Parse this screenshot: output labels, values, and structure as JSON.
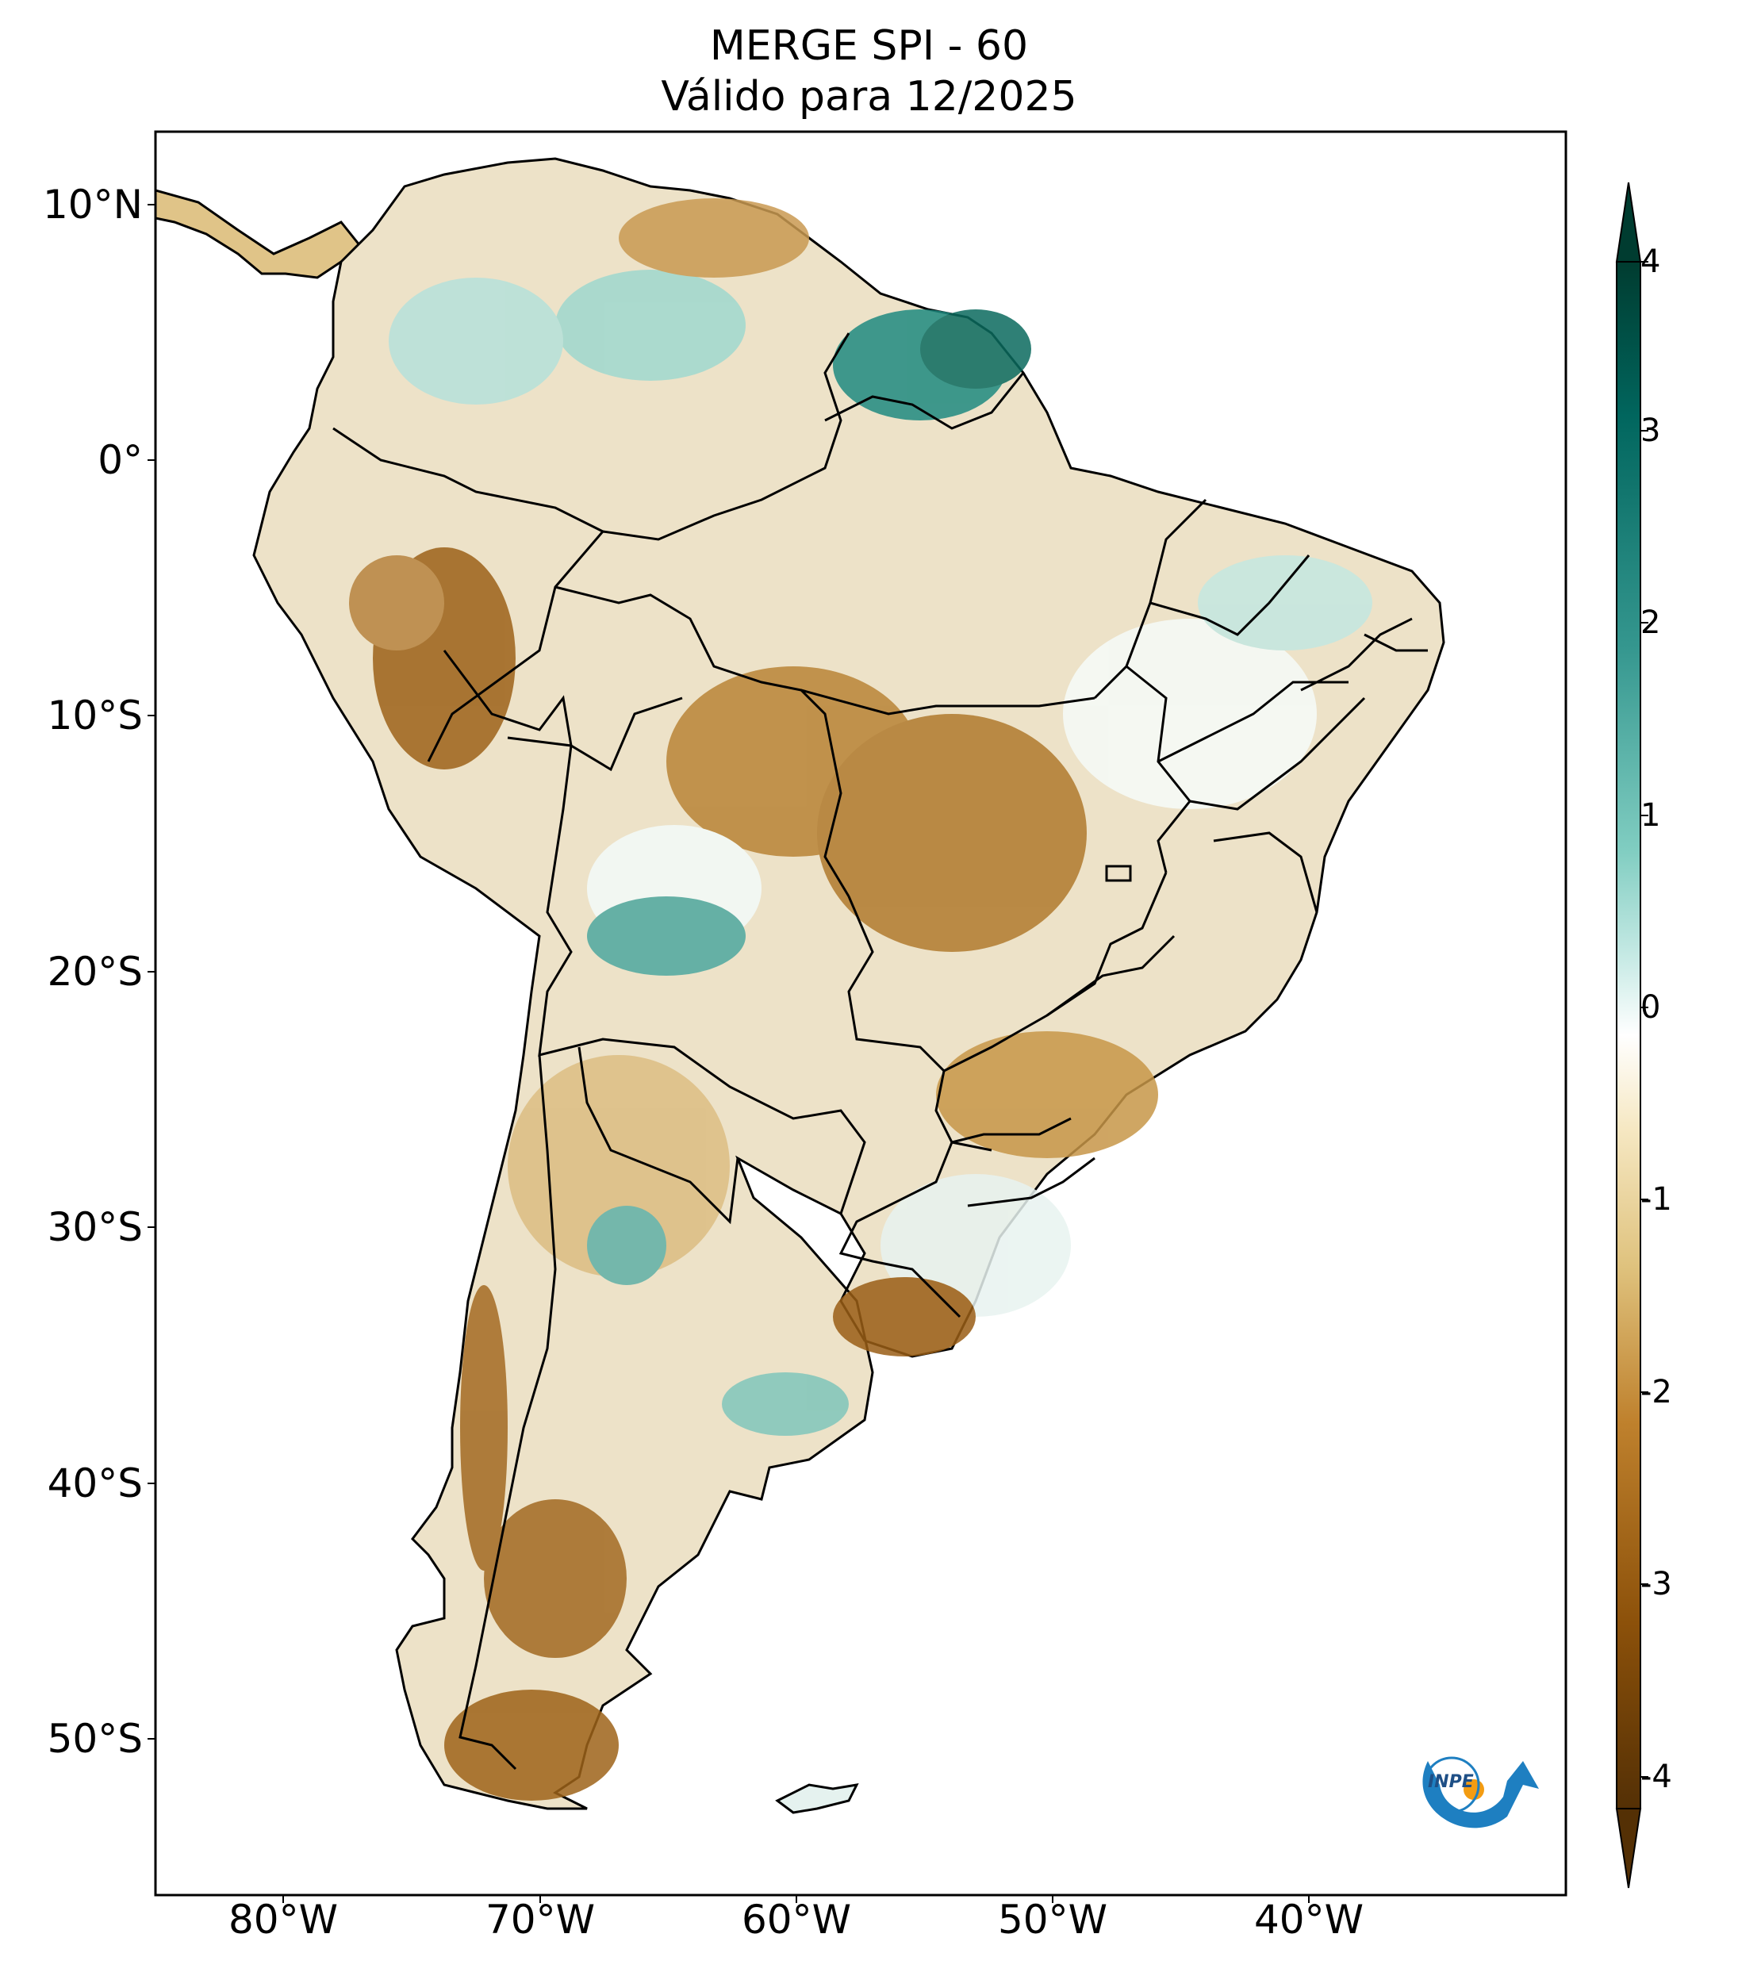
{
  "title": {
    "line1": "MERGE   SPI - 60",
    "line2": "Válido para 12/2025"
  },
  "map": {
    "latitude_labels": [
      "10°N",
      "0°",
      "10°S",
      "20°S",
      "30°S",
      "40°S",
      "50°S"
    ],
    "longitude_labels": [
      "80°W",
      "70°W",
      "60°W",
      "50°W",
      "40°W"
    ],
    "lon_range": [
      -85,
      -30
    ],
    "lat_range": [
      -56,
      13
    ]
  },
  "colorbar": {
    "ticks": [
      "4",
      "3",
      "2",
      "1",
      "0",
      "-1",
      "-2",
      "-3",
      "-4"
    ],
    "range": [
      -4,
      4
    ],
    "extend": "both",
    "colors": {
      "minus4": "#543005",
      "minus3": "#8c510a",
      "minus2": "#bf812d",
      "minus1": "#f6e8c3",
      "zero": "#ffffff",
      "plus1": "#c7eae5",
      "plus2": "#35978f",
      "plus3": "#01665e",
      "plus4": "#003c30"
    }
  },
  "logo": {
    "text": "INPE",
    "colors": {
      "arrow": "#1e7fc1",
      "dot": "#f39c12"
    }
  }
}
